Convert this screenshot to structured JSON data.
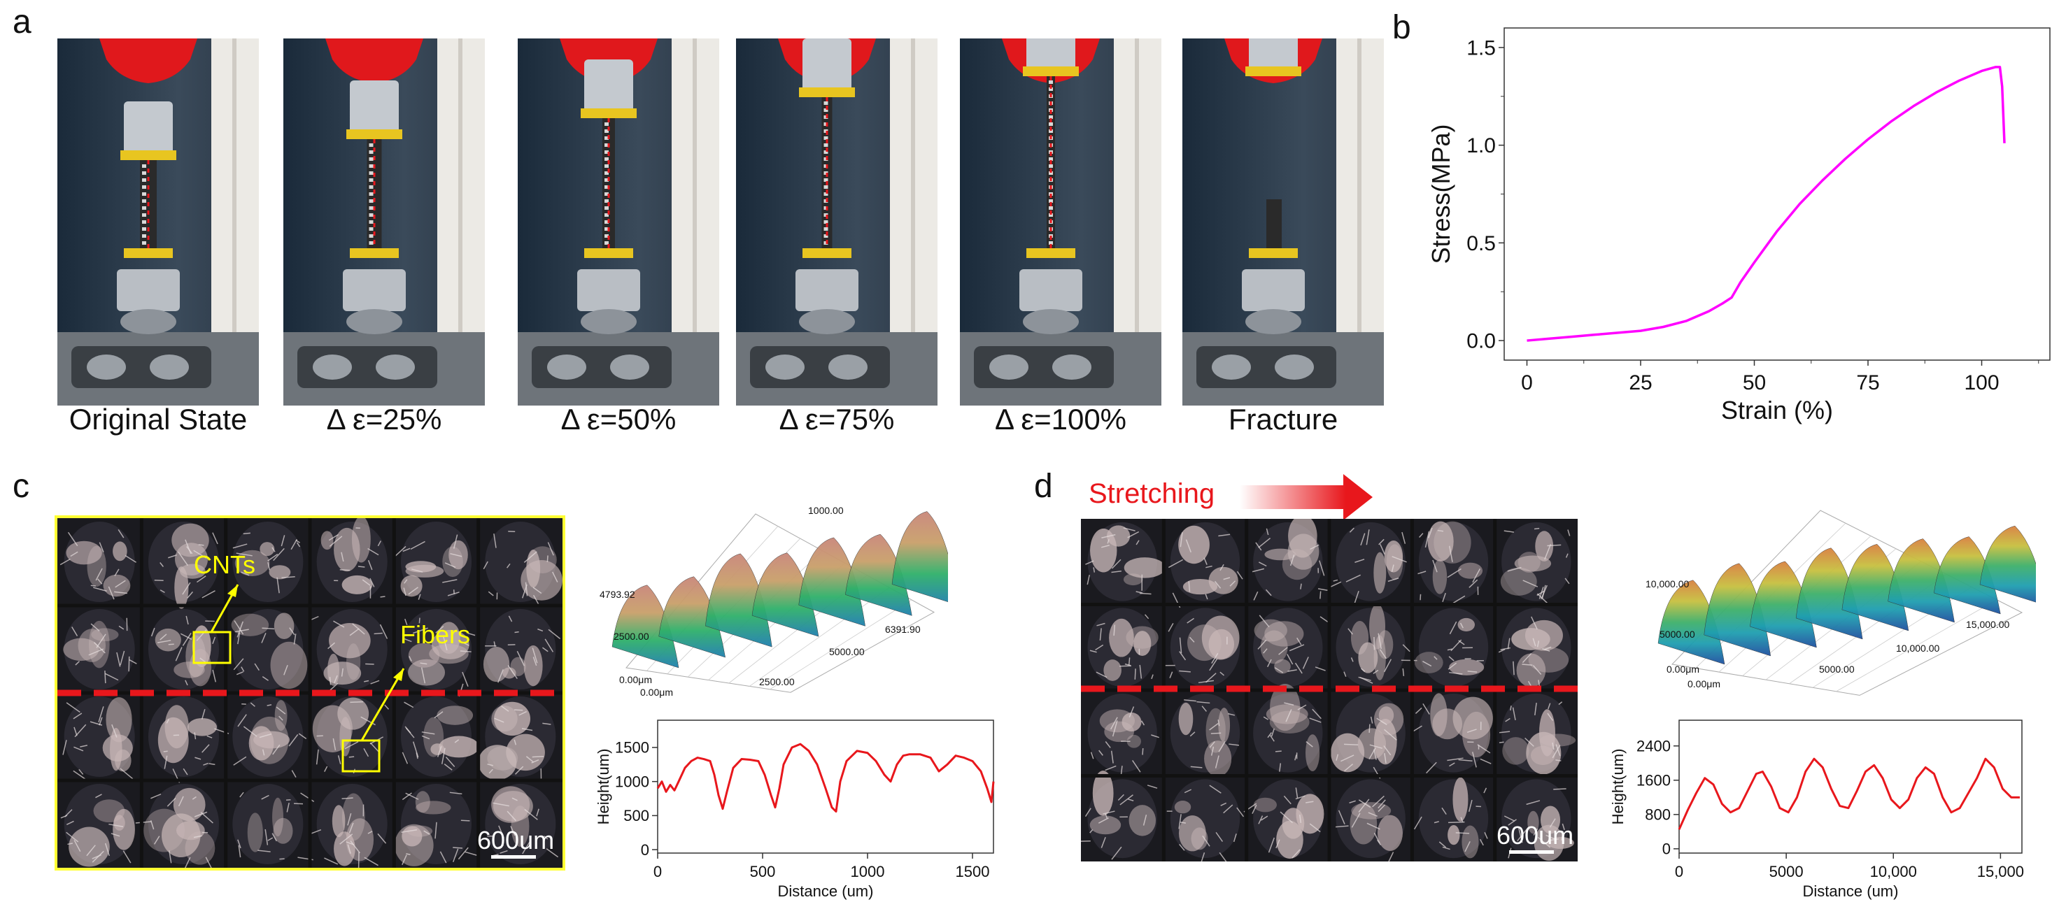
{
  "panels": {
    "a": {
      "letter": "a",
      "frames": [
        {
          "caption": "Original State",
          "stretch": 0.0,
          "fractured": false
        },
        {
          "caption": "Δ ε=25%",
          "stretch": 0.25,
          "fractured": false
        },
        {
          "caption": "Δ ε=50%",
          "stretch": 0.5,
          "fractured": false
        },
        {
          "caption": "Δ ε=75%",
          "stretch": 0.75,
          "fractured": false
        },
        {
          "caption": "Δ ε=100%",
          "stretch": 1.0,
          "fractured": false
        },
        {
          "caption": "Fracture",
          "stretch": 1.0,
          "fractured": true
        }
      ]
    },
    "b": {
      "letter": "b"
    },
    "c": {
      "letter": "c",
      "label_cnts": "CNTs",
      "label_fibers": "Fibers",
      "scale_bar": "600um",
      "surface_ticks": [
        "1000.00",
        "4793.92",
        "2500.00",
        "0.00μm",
        "0.00μm",
        "2500.00",
        "5000.00",
        "6391.90"
      ]
    },
    "d": {
      "letter": "d",
      "stretching_label": "Stretching",
      "scale_bar": "600um",
      "surface_ticks": [
        "10,000.00",
        "5000.00",
        "0.00μm",
        "0.00μm",
        "5000.00",
        "10,000.00",
        "15,000.00"
      ]
    }
  },
  "colors": {
    "stress_curve": "#ff00ff",
    "profile_curve": "#e8171c",
    "dashed_line": "#e8171c",
    "highlight": "#ffff00"
  },
  "chart_data": [
    {
      "id": "b",
      "type": "line",
      "xlabel": "Strain (%)",
      "ylabel": "Stress(MPa)",
      "xlim": [
        -5,
        115
      ],
      "ylim": [
        -0.1,
        1.6
      ],
      "xticks": [
        0,
        25,
        50,
        75,
        100
      ],
      "xtick_labels": [
        "0",
        "25",
        "50",
        "75",
        "100"
      ],
      "yticks": [
        0.0,
        0.5,
        1.0,
        1.5
      ],
      "ytick_labels": [
        "0.0",
        "0.5",
        "1.0",
        "1.5"
      ],
      "grid": false,
      "x": [
        0,
        5,
        10,
        15,
        20,
        25,
        30,
        35,
        40,
        43,
        45,
        47,
        50,
        55,
        60,
        65,
        70,
        75,
        80,
        85,
        90,
        95,
        100,
        103,
        104,
        104.5,
        105
      ],
      "y": [
        0.0,
        0.01,
        0.02,
        0.03,
        0.04,
        0.05,
        0.07,
        0.1,
        0.15,
        0.19,
        0.22,
        0.3,
        0.4,
        0.56,
        0.7,
        0.82,
        0.93,
        1.03,
        1.12,
        1.2,
        1.27,
        1.33,
        1.38,
        1.4,
        1.4,
        1.3,
        1.01
      ]
    },
    {
      "id": "c-profile",
      "type": "line",
      "xlabel": "Distance (um)",
      "ylabel": "Height(um)",
      "xlim": [
        0,
        1600
      ],
      "ylim": [
        -50,
        1900
      ],
      "xticks": [
        0,
        500,
        1000,
        1500
      ],
      "xtick_labels": [
        "0",
        "500",
        "1000",
        "1500"
      ],
      "yticks": [
        0,
        500,
        1000,
        1500
      ],
      "ytick_labels": [
        "0",
        "500",
        "1000",
        "1500"
      ],
      "grid": false,
      "x": [
        0,
        20,
        40,
        60,
        80,
        100,
        130,
        160,
        190,
        220,
        250,
        270,
        290,
        310,
        330,
        360,
        400,
        440,
        480,
        510,
        540,
        560,
        580,
        600,
        640,
        680,
        720,
        760,
        800,
        830,
        850,
        870,
        900,
        950,
        1000,
        1040,
        1080,
        1110,
        1140,
        1170,
        1200,
        1250,
        1300,
        1340,
        1380,
        1420,
        1460,
        1500,
        1540,
        1570,
        1590,
        1600
      ],
      "y": [
        900,
        1000,
        850,
        950,
        870,
        1000,
        1200,
        1300,
        1350,
        1330,
        1300,
        1100,
        800,
        600,
        850,
        1200,
        1330,
        1320,
        1300,
        1100,
        800,
        620,
        900,
        1250,
        1500,
        1550,
        1450,
        1250,
        900,
        620,
        560,
        1000,
        1300,
        1450,
        1420,
        1300,
        1100,
        1000,
        1250,
        1380,
        1400,
        1400,
        1350,
        1150,
        1250,
        1380,
        1350,
        1300,
        1150,
        900,
        700,
        1000
      ]
    },
    {
      "id": "d-profile",
      "type": "line",
      "xlabel": "Distance (um)",
      "ylabel": "Height(um)",
      "xlim": [
        0,
        16000
      ],
      "ylim": [
        -100,
        3000
      ],
      "xticks": [
        0,
        5000,
        10000,
        15000
      ],
      "xtick_labels": [
        "0",
        "5000",
        "10,000",
        "15,000"
      ],
      "yticks": [
        0,
        800,
        1600,
        2400
      ],
      "ytick_labels": [
        "0",
        "800",
        "1600",
        "2400"
      ],
      "grid": false,
      "x": [
        0,
        400,
        800,
        1200,
        1600,
        2000,
        2400,
        2800,
        3200,
        3600,
        3900,
        4300,
        4700,
        5100,
        5500,
        5900,
        6300,
        6700,
        7100,
        7500,
        7900,
        8300,
        8700,
        9100,
        9500,
        9900,
        10300,
        10700,
        11100,
        11500,
        11900,
        12300,
        12700,
        13100,
        13500,
        13900,
        14300,
        14700,
        15100,
        15500,
        15900
      ],
      "y": [
        450,
        900,
        1300,
        1650,
        1500,
        1050,
        850,
        950,
        1350,
        1750,
        1800,
        1450,
        950,
        850,
        1200,
        1800,
        2100,
        1900,
        1400,
        1000,
        950,
        1350,
        1800,
        1950,
        1650,
        1150,
        950,
        1150,
        1650,
        1900,
        1750,
        1200,
        850,
        950,
        1300,
        1650,
        2100,
        1900,
        1400,
        1200,
        1200
      ]
    }
  ]
}
